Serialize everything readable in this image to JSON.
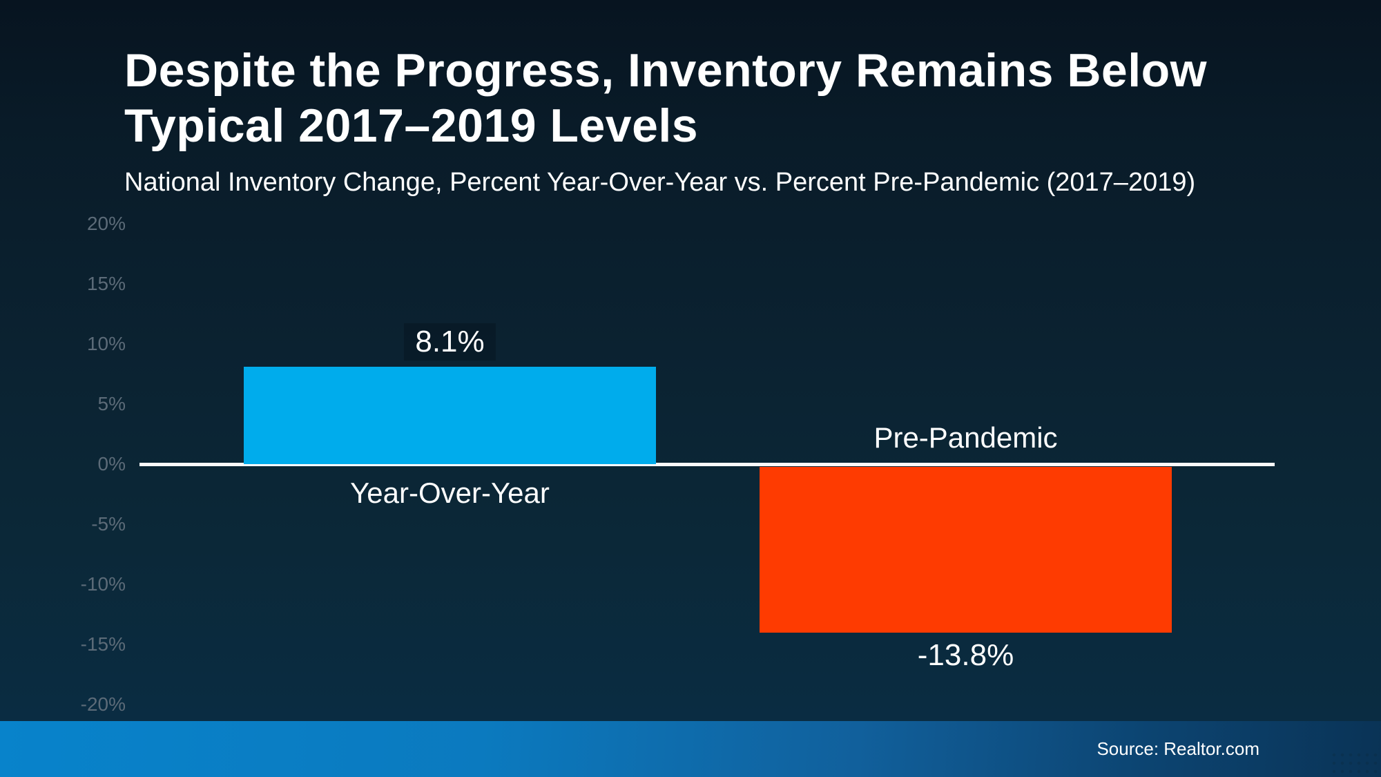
{
  "title": {
    "line1": "Despite the Progress, Inventory Remains Below",
    "line2": "Typical 2017–2019 Levels"
  },
  "subtitle": "National Inventory Change, Percent Year-Over-Year vs. Percent Pre-Pandemic (2017–2019)",
  "chart_data": {
    "type": "bar",
    "title": "Despite the Progress, Inventory Remains Below Typical 2017–2019 Levels",
    "subtitle": "National Inventory Change, Percent Year-Over-Year vs. Percent Pre-Pandemic (2017–2019)",
    "categories": [
      "Year-Over-Year",
      "Pre-Pandemic"
    ],
    "values": [
      8.1,
      -13.8
    ],
    "value_labels": [
      "8.1%",
      "-13.8%"
    ],
    "series_colors": [
      "#00ACEC",
      "#FE3B01"
    ],
    "xlabel": "",
    "ylabel": "",
    "ylim": [
      -20,
      20
    ],
    "yticks": [
      "20%",
      "15%",
      "10%",
      "5%",
      "0%",
      "-5%",
      "-10%",
      "-15%",
      "-20%"
    ],
    "grid": false,
    "legend": false,
    "baseline_color": "#FBFBFB",
    "tick_color": "#5C6B78"
  },
  "footer": {
    "source_label": "Source: Realtor.com"
  },
  "colors": {
    "background_top": "#071420",
    "background_bottom": "#0A2C42",
    "footer_left": "#0883CB",
    "footer_right": "#0A3356",
    "text": "#FFFFFF"
  }
}
